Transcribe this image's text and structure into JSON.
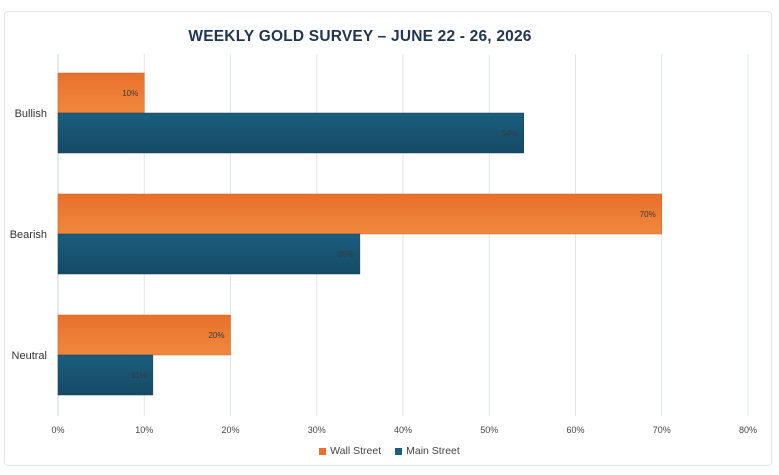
{
  "chart_data": {
    "type": "bar",
    "orientation": "horizontal",
    "title": "WEEKLY GOLD SURVEY – JUNE 22 - 26, 2026",
    "categories": [
      "Bullish",
      "Bearish",
      "Neutral"
    ],
    "series": [
      {
        "name": "Wall Street",
        "values": [
          10,
          70,
          20
        ],
        "labels": [
          "10%",
          "70%",
          "20%"
        ],
        "color": "#e8702a"
      },
      {
        "name": "Main Street",
        "values": [
          54,
          35,
          11
        ],
        "labels": [
          "54%",
          "35%",
          "11%"
        ],
        "color": "#1b5e7e"
      }
    ],
    "xticks": [
      "0%",
      "10%",
      "20%",
      "30%",
      "40%",
      "50%",
      "60%",
      "70%",
      "80%"
    ],
    "xlim": [
      0,
      80
    ],
    "grid": true,
    "legend_position": "bottom"
  }
}
